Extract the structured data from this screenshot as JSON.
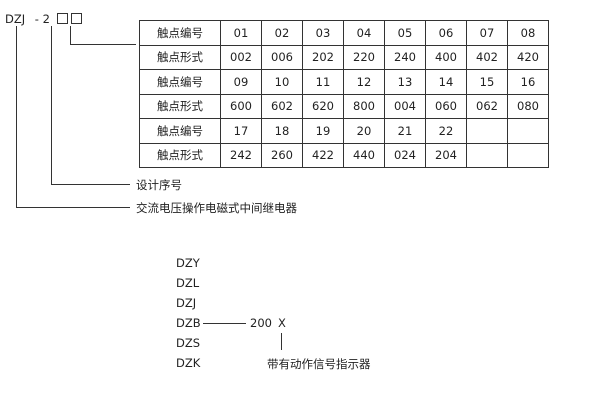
{
  "model_code": {
    "prefix": "DZJ",
    "dash_series": "- 2",
    "placeholder_boxes": 2
  },
  "table": {
    "rows": [
      {
        "label": "触点编号",
        "cells": [
          "01",
          "02",
          "03",
          "04",
          "05",
          "06",
          "07",
          "08"
        ]
      },
      {
        "label": "触点形式",
        "cells": [
          "002",
          "006",
          "202",
          "220",
          "240",
          "400",
          "402",
          "420"
        ]
      },
      {
        "label": "触点编号",
        "cells": [
          "09",
          "10",
          "11",
          "12",
          "13",
          "14",
          "15",
          "16"
        ]
      },
      {
        "label": "触点形式",
        "cells": [
          "600",
          "602",
          "620",
          "800",
          "004",
          "060",
          "062",
          "080"
        ]
      },
      {
        "label": "触点编号",
        "cells": [
          "17",
          "18",
          "19",
          "20",
          "21",
          "22",
          "",
          ""
        ]
      },
      {
        "label": "触点形式",
        "cells": [
          "242",
          "260",
          "422",
          "440",
          "024",
          "204",
          "",
          ""
        ]
      }
    ]
  },
  "labels": {
    "design_serial": "设计序号",
    "relay_type": "交流电压操作电磁式中间继电器"
  },
  "series_list": [
    "DZY",
    "DZL",
    "DZJ",
    "DZB",
    "DZS",
    "DZK"
  ],
  "suffix": {
    "code": "200",
    "flag": "X",
    "flag_desc": "带有动作信号指示器"
  }
}
